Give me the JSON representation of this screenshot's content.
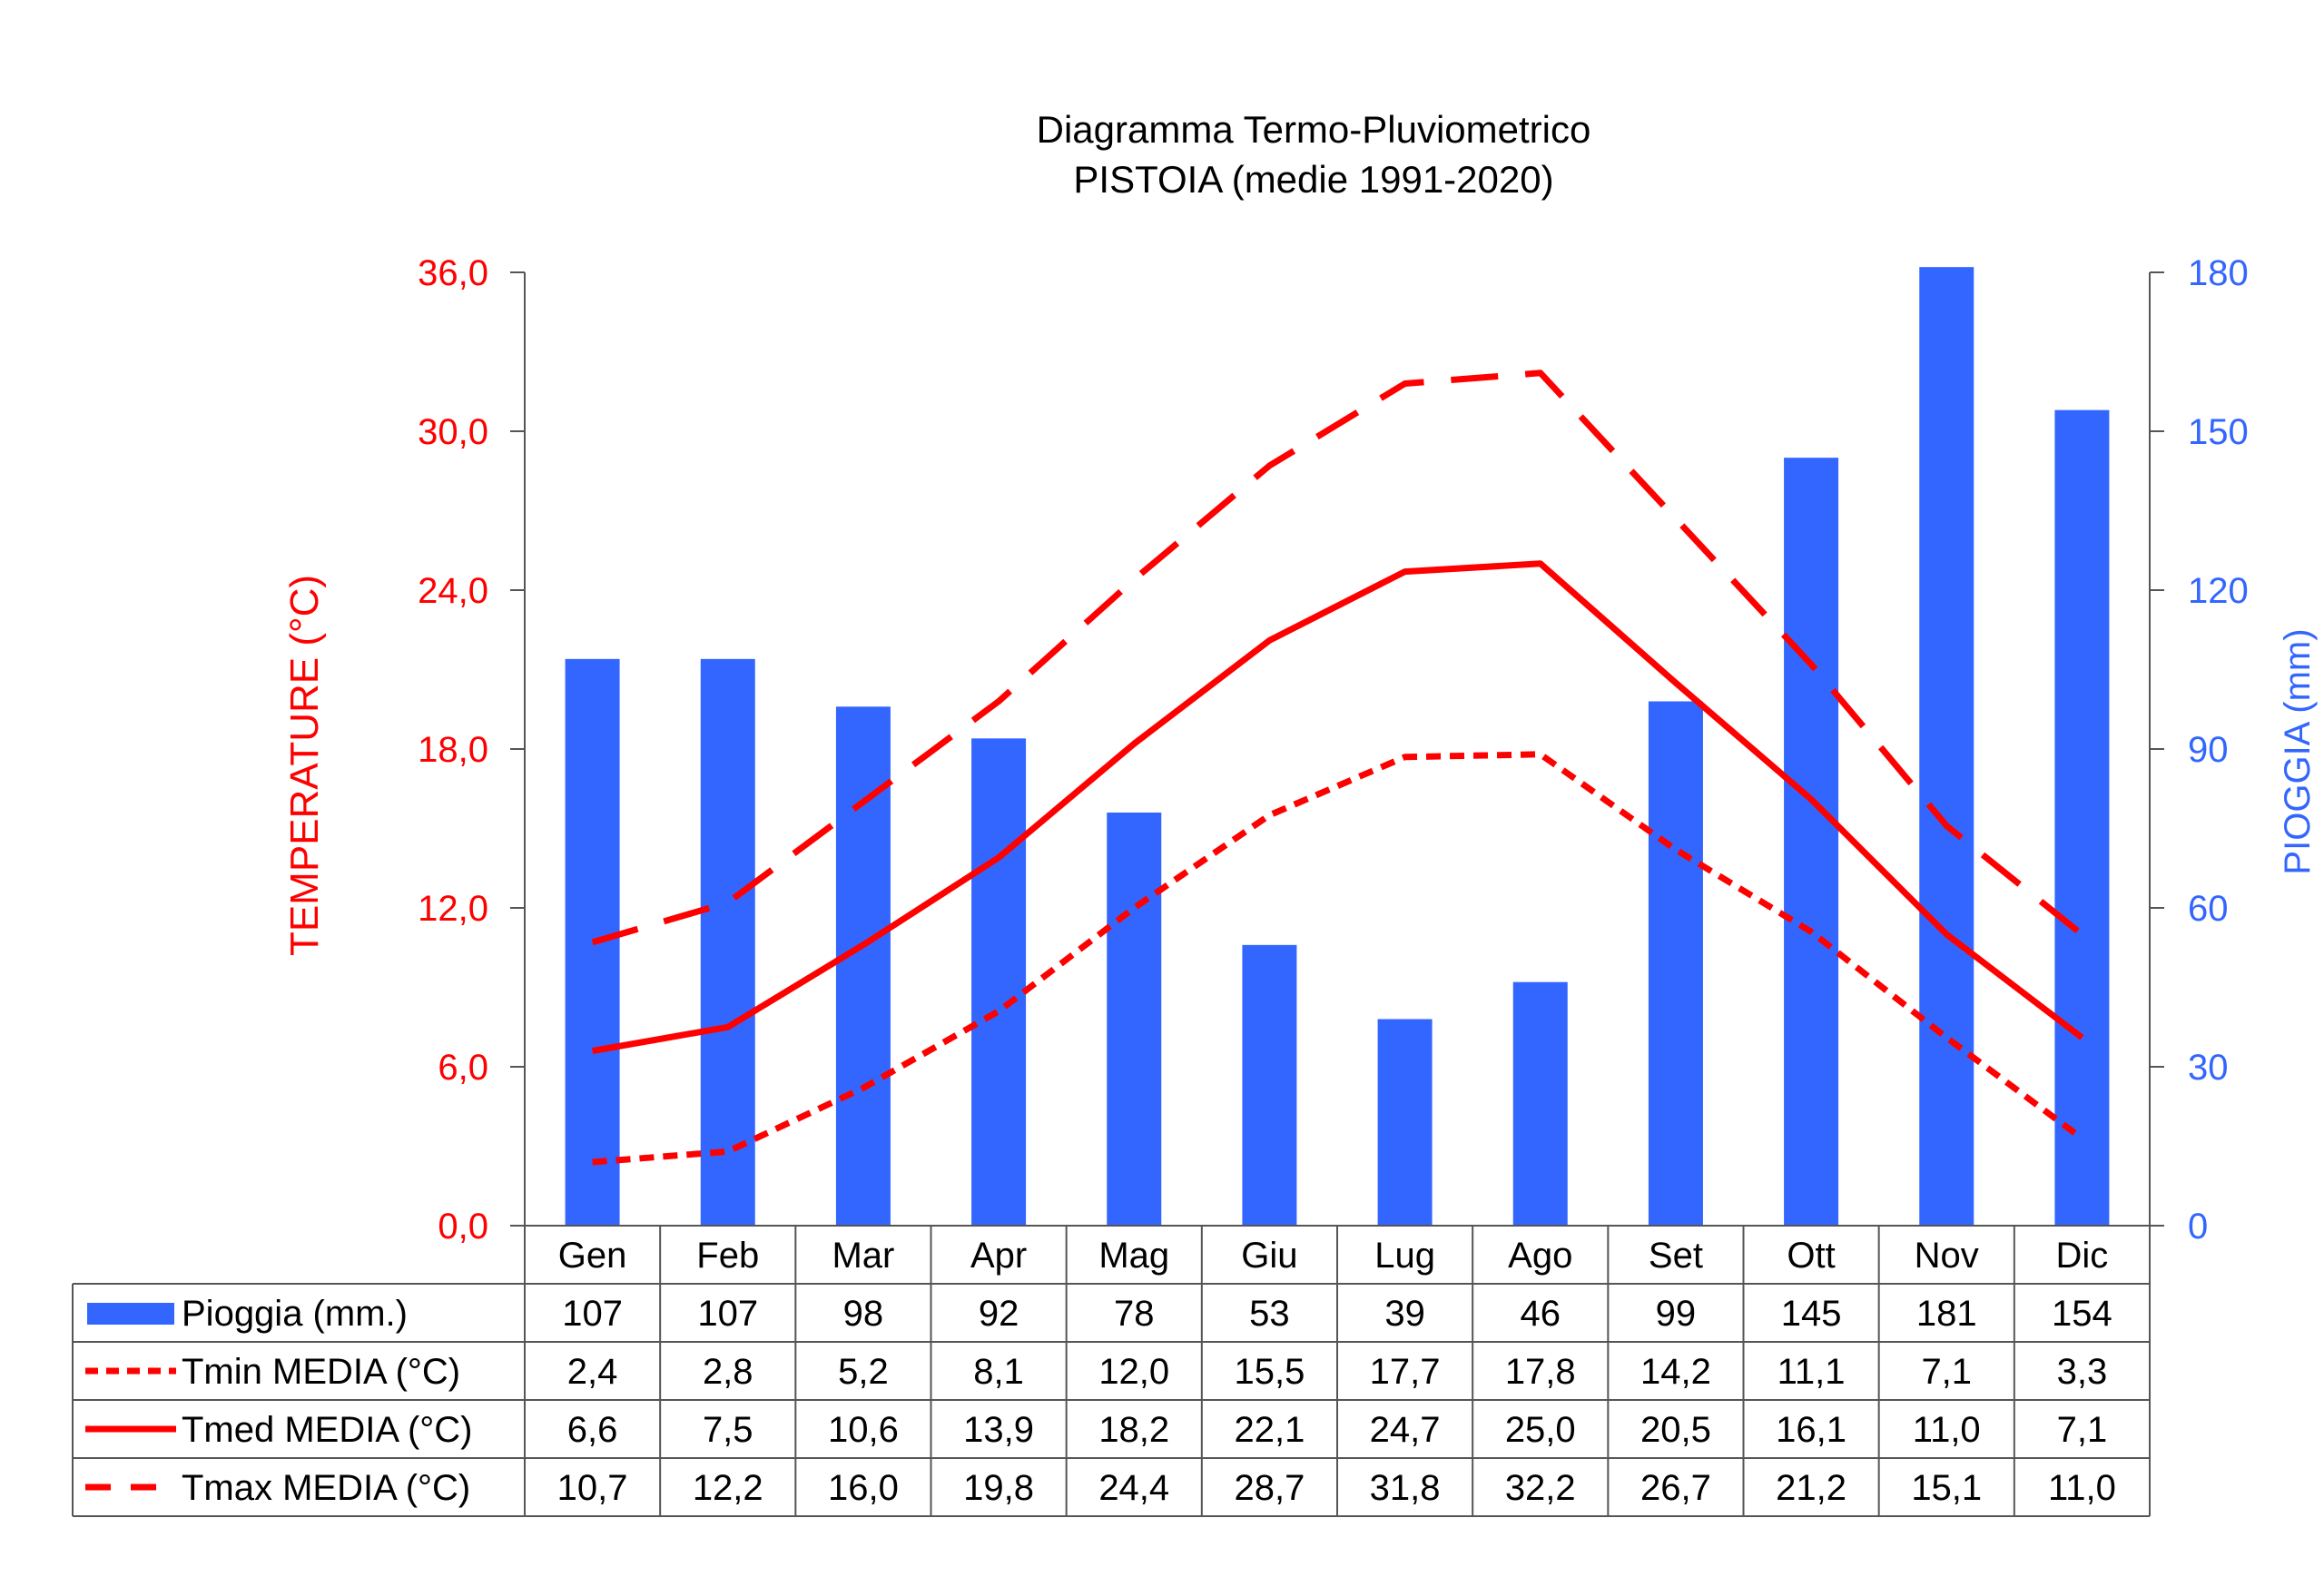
{
  "chart_data": {
    "type": "bar+line",
    "title": "Diagramma Termo-Pluviometrico",
    "subtitle": "PISTOIA (medie 1991-2020)",
    "categories": [
      "Gen",
      "Feb",
      "Mar",
      "Apr",
      "Mag",
      "Giu",
      "Lug",
      "Ago",
      "Set",
      "Ott",
      "Nov",
      "Dic"
    ],
    "y_left": {
      "label": "TEMPERATURE (°C)",
      "ylim": [
        0,
        36
      ],
      "ticks": [
        "0,0",
        "6,0",
        "12,0",
        "18,0",
        "24,0",
        "30,0",
        "36,0"
      ],
      "color": "#ff0000"
    },
    "y_right": {
      "label": "PIOGGIA (mm)",
      "ylim": [
        0,
        180
      ],
      "ticks": [
        "0",
        "30",
        "60",
        "90",
        "120",
        "150",
        "180"
      ],
      "color": "#3366ff"
    },
    "grid": false,
    "legend_placement": "data-table-below",
    "series": [
      {
        "name": "Pioggia (mm.)",
        "type": "bar",
        "axis": "right",
        "color": "#3366ff",
        "values": [
          107,
          107,
          98,
          92,
          78,
          53,
          39,
          46,
          99,
          145,
          181,
          154
        ],
        "labels": [
          "107",
          "107",
          "98",
          "92",
          "78",
          "53",
          "39",
          "46",
          "99",
          "145",
          "181",
          "154"
        ]
      },
      {
        "name": "Tmin MEDIA (°C)",
        "type": "line",
        "axis": "left",
        "style": "dotted",
        "color": "#ff0000",
        "values": [
          2.4,
          2.8,
          5.2,
          8.1,
          12.0,
          15.5,
          17.7,
          17.8,
          14.2,
          11.1,
          7.1,
          3.3
        ],
        "labels": [
          "2,4",
          "2,8",
          "5,2",
          "8,1",
          "12,0",
          "15,5",
          "17,7",
          "17,8",
          "14,2",
          "11,1",
          "7,1",
          "3,3"
        ]
      },
      {
        "name": "Tmed MEDIA (°C)",
        "type": "line",
        "axis": "left",
        "style": "solid",
        "color": "#ff0000",
        "values": [
          6.6,
          7.5,
          10.6,
          13.9,
          18.2,
          22.1,
          24.7,
          25.0,
          20.5,
          16.1,
          11.0,
          7.1
        ],
        "labels": [
          "6,6",
          "7,5",
          "10,6",
          "13,9",
          "18,2",
          "22,1",
          "24,7",
          "25,0",
          "20,5",
          "16,1",
          "11,0",
          "7,1"
        ]
      },
      {
        "name": "Tmax MEDIA (°C)",
        "type": "line",
        "axis": "left",
        "style": "dashed",
        "color": "#ff0000",
        "values": [
          10.7,
          12.2,
          16.0,
          19.8,
          24.4,
          28.7,
          31.8,
          32.2,
          26.7,
          21.2,
          15.1,
          11.0
        ],
        "labels": [
          "10,7",
          "12,2",
          "16,0",
          "19,8",
          "24,4",
          "28,7",
          "31,8",
          "32,2",
          "26,7",
          "21,2",
          "15,1",
          "11,0"
        ]
      }
    ]
  }
}
